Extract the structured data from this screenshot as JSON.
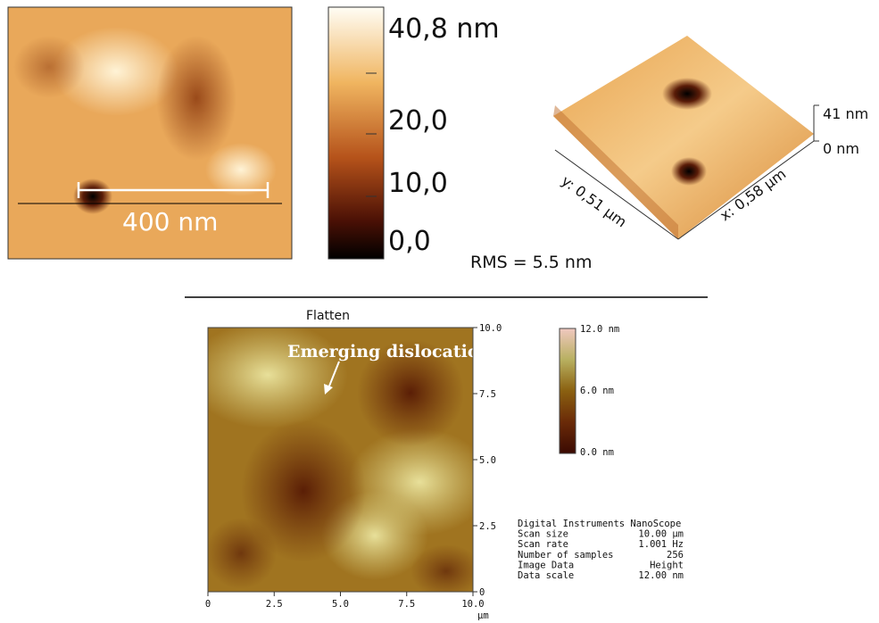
{
  "top_image": {
    "scale_bar_label": "400 nm"
  },
  "top_colorbar": {
    "ticks": [
      "40,8 nm",
      "20,0",
      "10,0",
      "0,0"
    ]
  },
  "surface_3d": {
    "z_labels": [
      "41 nm",
      "0 nm"
    ],
    "y_axis_label": "y: 0,51 µm",
    "x_axis_label": "x: 0,58 µm"
  },
  "rms": "RMS  = 5.5 nm",
  "flatten_image": {
    "title": "Flatten",
    "annotation": "Emerging dislocatio",
    "y_ticks": [
      "10.0",
      "7.5",
      "5.0",
      "2.5",
      "0"
    ],
    "x_ticks": [
      "0",
      "2.5",
      "5.0",
      "7.5",
      "10.0"
    ],
    "x_unit": "μm",
    "colorbar_ticks": [
      "12.0 nm",
      "6.0 nm",
      "0.0 nm"
    ],
    "info": [
      [
        "Digital Instruments NanoScope"
      ],
      [
        "Scan size",
        "10.00 μm"
      ],
      [
        "Scan rate",
        "1.001 Hz"
      ],
      [
        "Number of samples",
        "256"
      ],
      [
        "Image Data",
        "Height"
      ],
      [
        "Data scale",
        "12.00 nm"
      ]
    ]
  }
}
